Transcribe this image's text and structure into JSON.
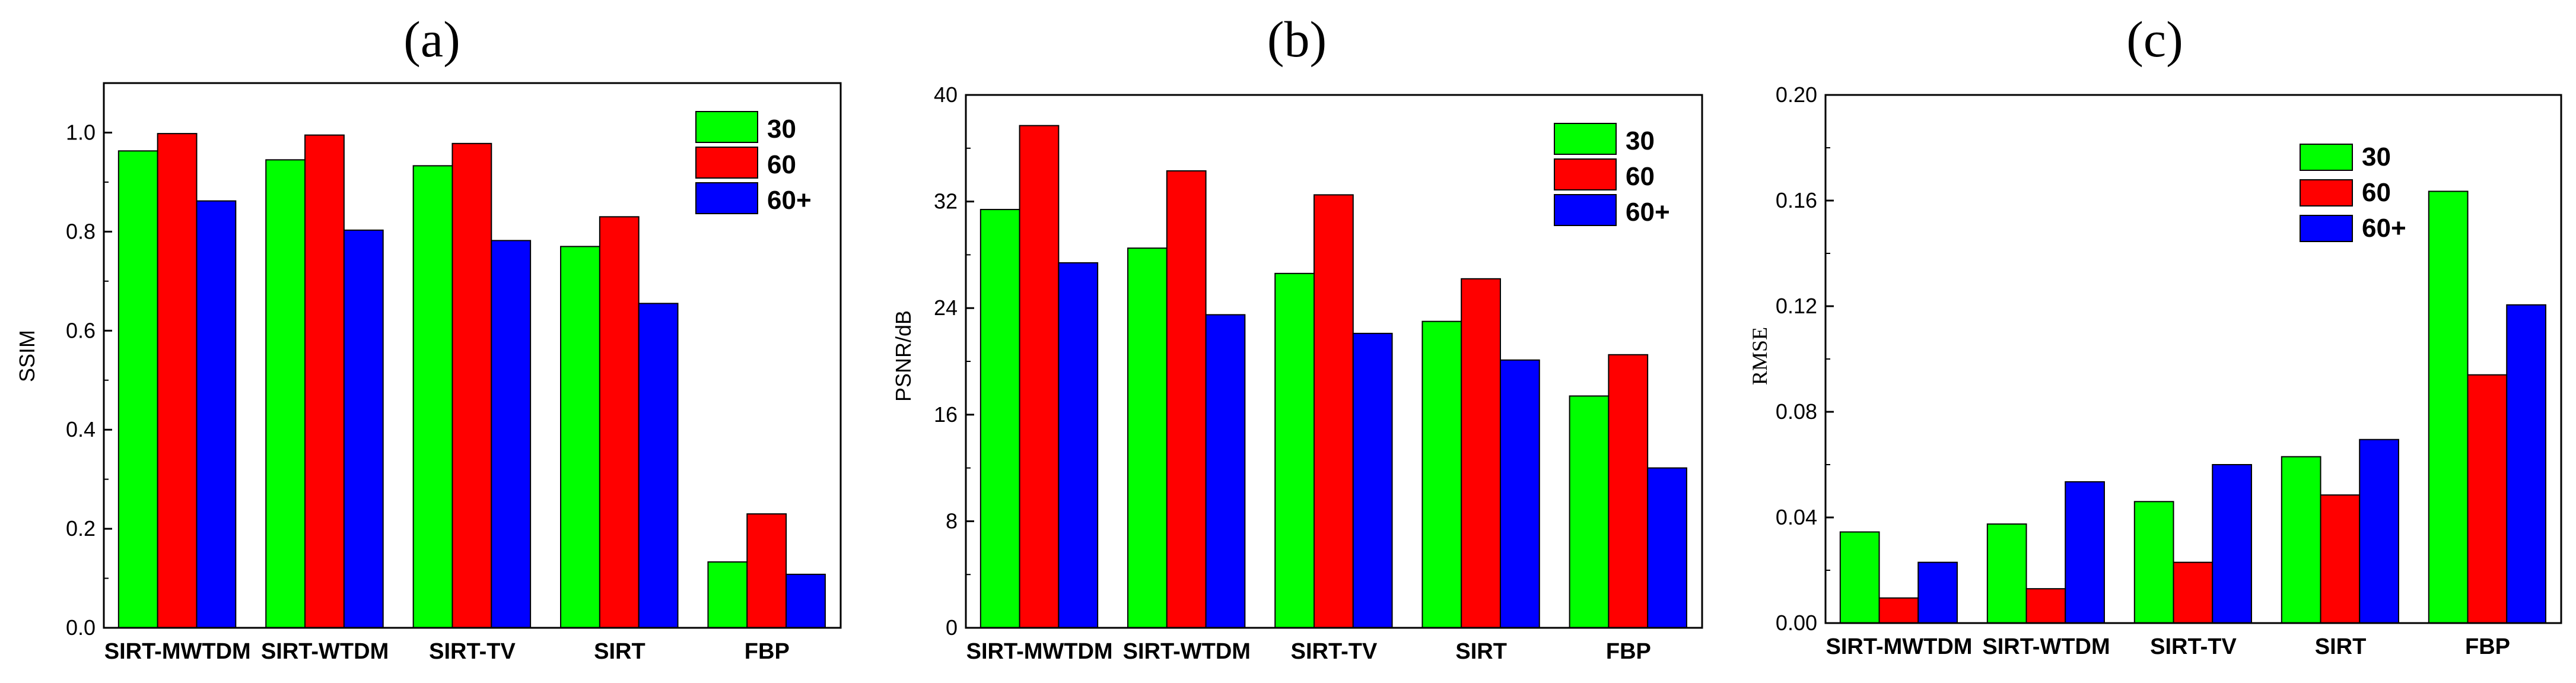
{
  "chart_data": [
    {
      "type": "bar",
      "panel": "(a)",
      "title": "(a)",
      "xlabel": "",
      "ylabel": "SSIM",
      "ylim": [
        0,
        1.1
      ],
      "yticks": [
        "0.0",
        "0.2",
        "0.4",
        "0.6",
        "0.8",
        "1.0"
      ],
      "categories": [
        "SIRT-MWTDM",
        "SIRT-WTDM",
        "SIRT-TV",
        "SIRT",
        "FBP"
      ],
      "series": [
        {
          "name": "30",
          "color": "#00ff00",
          "values": [
            0.963,
            0.945,
            0.933,
            0.77,
            0.133
          ]
        },
        {
          "name": "60",
          "color": "#ff0000",
          "values": [
            0.998,
            0.995,
            0.978,
            0.83,
            0.23
          ]
        },
        {
          "name": "60+",
          "color": "#0000ff",
          "values": [
            0.862,
            0.803,
            0.782,
            0.655,
            0.108
          ]
        }
      ],
      "legend_position": "top-right"
    },
    {
      "type": "bar",
      "panel": "(b)",
      "title": "(b)",
      "xlabel": "",
      "ylabel": "PSNR/dB",
      "ylim": [
        0,
        40
      ],
      "yticks": [
        "0",
        "8",
        "16",
        "24",
        "32",
        "40"
      ],
      "categories": [
        "SIRT-MWTDM",
        "SIRT-WTDM",
        "SIRT-TV",
        "SIRT",
        "FBP"
      ],
      "series": [
        {
          "name": "30",
          "color": "#00ff00",
          "values": [
            31.4,
            28.5,
            26.6,
            23.0,
            17.4
          ]
        },
        {
          "name": "60",
          "color": "#ff0000",
          "values": [
            37.7,
            34.3,
            32.5,
            26.2,
            20.5
          ]
        },
        {
          "name": "60+",
          "color": "#0000ff",
          "values": [
            27.4,
            23.5,
            22.1,
            20.1,
            12.0
          ]
        }
      ],
      "legend_position": "top-right"
    },
    {
      "type": "bar",
      "panel": "(c)",
      "title": "(c)",
      "xlabel": "",
      "ylabel": "RMSE",
      "ylim": [
        0,
        0.2
      ],
      "yticks": [
        "0.00",
        "0.04",
        "0.08",
        "0.12",
        "0.16",
        "0.20"
      ],
      "categories": [
        "SIRT-MWTDM",
        "SIRT-WTDM",
        "SIRT-TV",
        "SIRT",
        "FBP"
      ],
      "series": [
        {
          "name": "30",
          "color": "#00ff00",
          "values": [
            0.0345,
            0.0375,
            0.046,
            0.063,
            0.1635
          ]
        },
        {
          "name": "60",
          "color": "#ff0000",
          "values": [
            0.0095,
            0.013,
            0.023,
            0.0485,
            0.094
          ]
        },
        {
          "name": "60+",
          "color": "#0000ff",
          "values": [
            0.023,
            0.0535,
            0.06,
            0.0695,
            0.1205
          ]
        }
      ],
      "legend_position": "top-right"
    }
  ]
}
